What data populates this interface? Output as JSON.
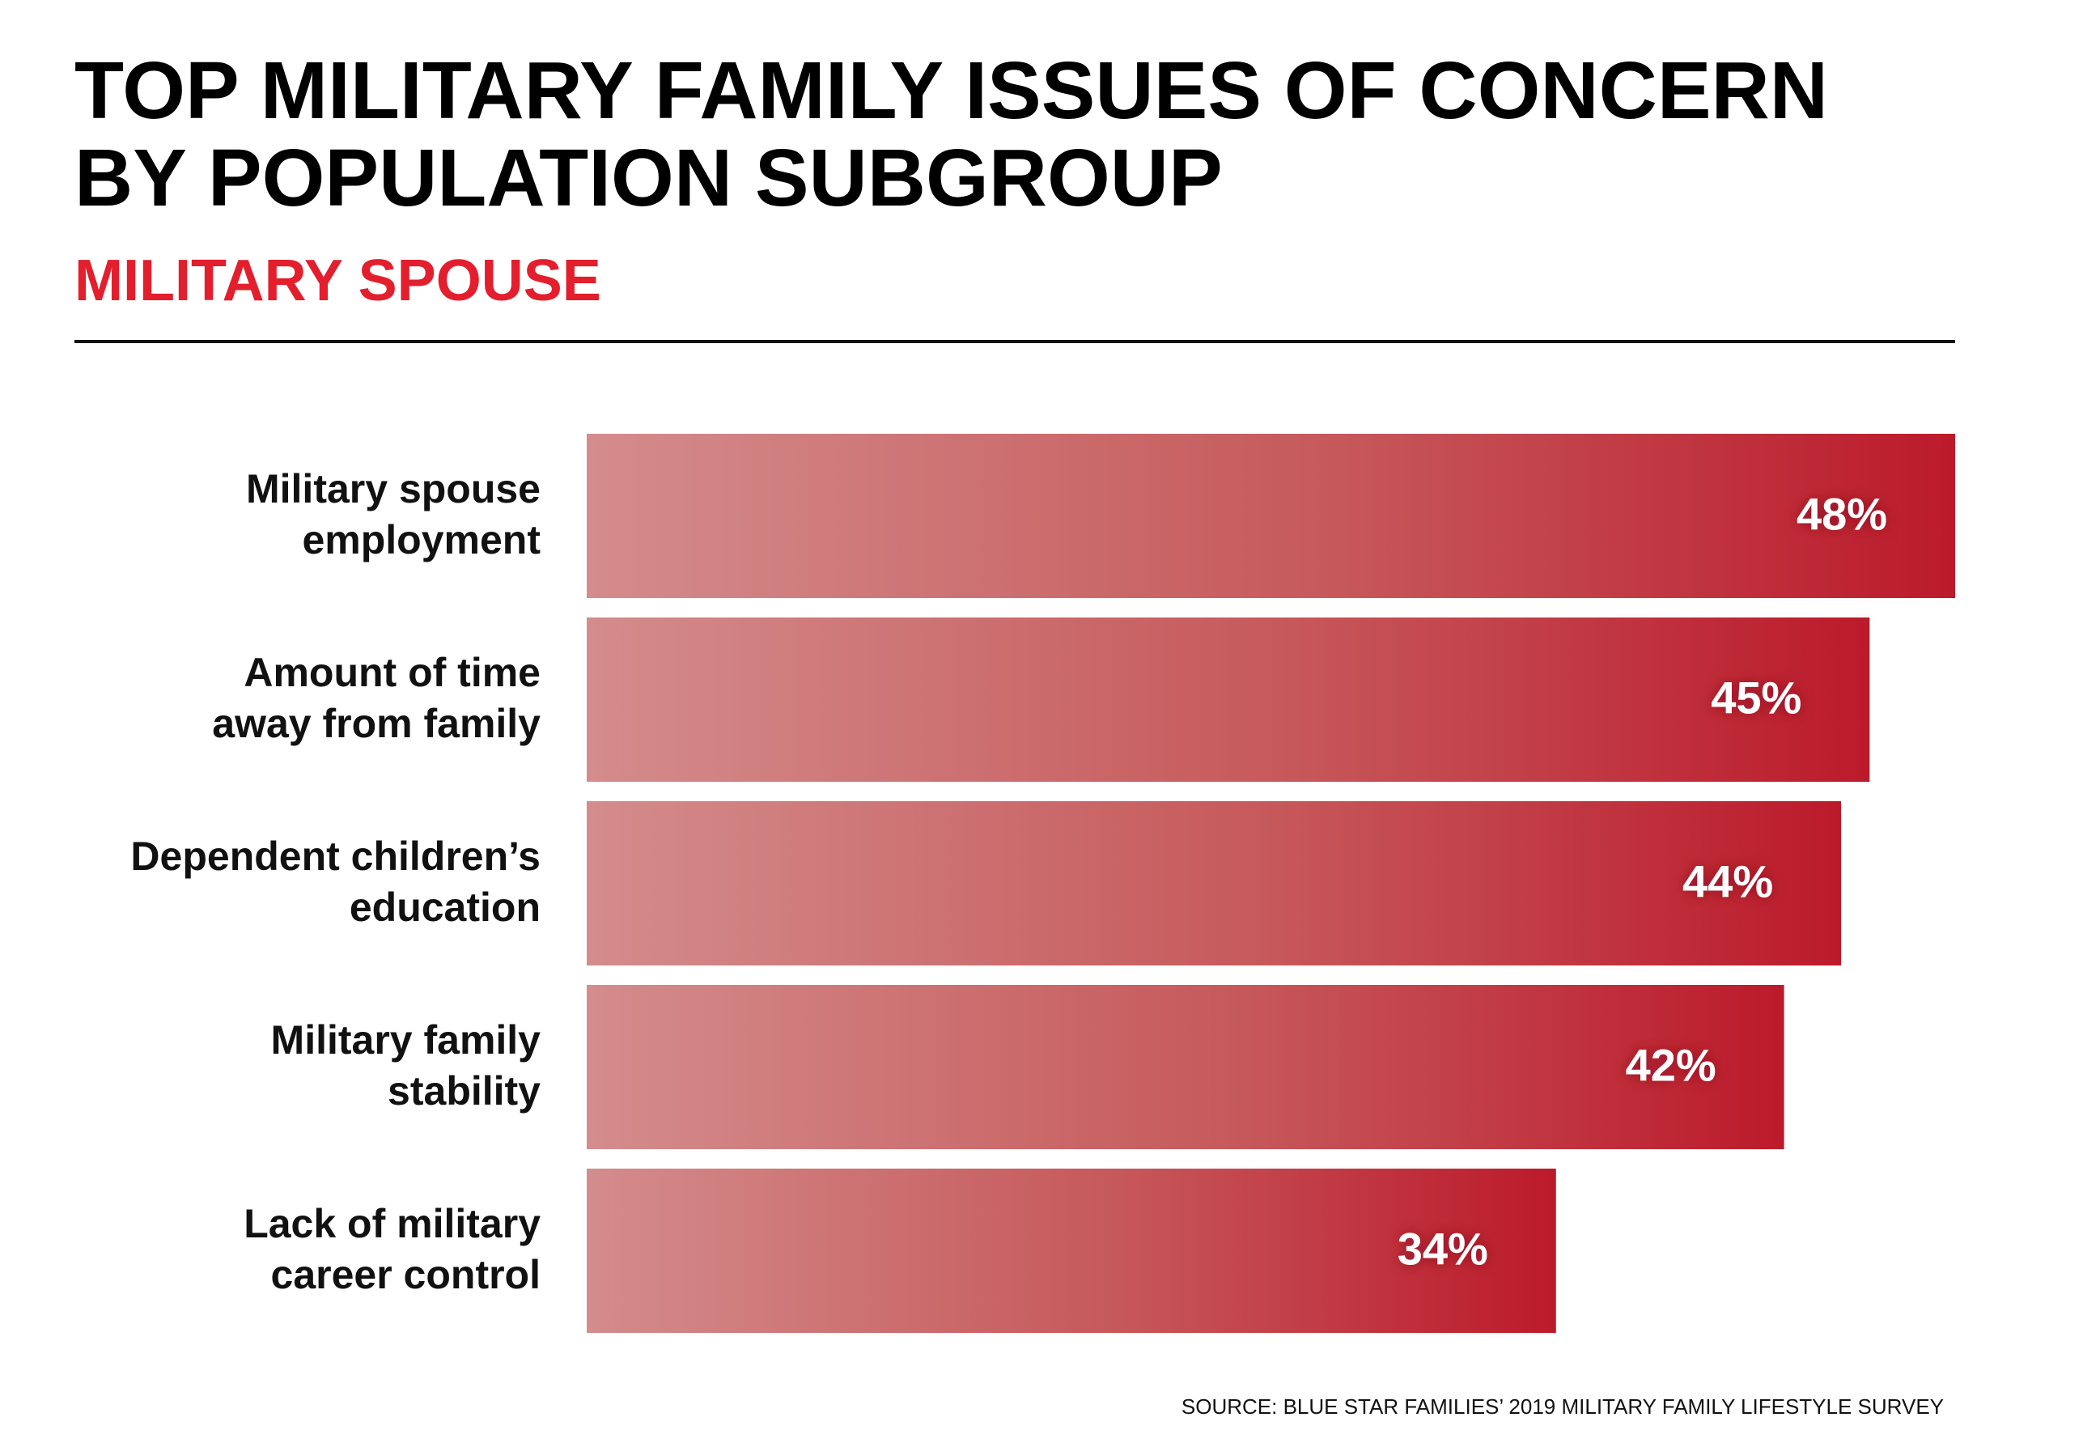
{
  "chart_data": {
    "type": "bar",
    "orientation": "horizontal",
    "title": "TOP MILITARY FAMILY ISSUES OF CONCERN\nBY POPULATION SUBGROUP",
    "subtitle": "MILITARY SPOUSE",
    "categories": [
      "Military spouse\nemployment",
      "Amount of time\naway from family",
      "Dependent children’s\neducation",
      "Military family\nstability",
      "Lack of military\ncareer control"
    ],
    "values": [
      48,
      45,
      44,
      42,
      34
    ],
    "value_labels": [
      "48%",
      "45%",
      "44%",
      "42%",
      "34%"
    ],
    "color": "#bc1a2b",
    "xlim": [
      0,
      48
    ],
    "source": "SOURCE: BLUE STAR FAMILIES’ 2019 MILITARY FAMILY LIFESTYLE SURVEY"
  }
}
